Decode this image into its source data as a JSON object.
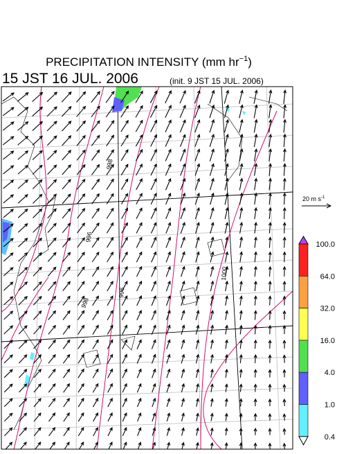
{
  "header": {
    "title": "PRECIPITATION INTENSITY (mm hr",
    "title_exponent": "−1",
    "title_end": ")",
    "valid_time": "15 JST 16 JUL. 2006",
    "init_time": "(init. 9 JST 15 JUL. 2006)"
  },
  "vector_legend": {
    "label": "20 m s",
    "exponent": "-1"
  },
  "colorbar": {
    "labels": [
      "100.0",
      "64.0",
      "32.0",
      "16.0",
      "4.0",
      "1.0",
      "0.4"
    ],
    "colors": [
      "#ff2020",
      "#ffa040",
      "#ffff50",
      "#50e050",
      "#6060ff",
      "#60f0ff"
    ],
    "over_color": "#c040ff",
    "under_color": "#ffffff"
  },
  "contour_labels": [
    "998",
    "996",
    "996",
    "998",
    "1000"
  ]
}
